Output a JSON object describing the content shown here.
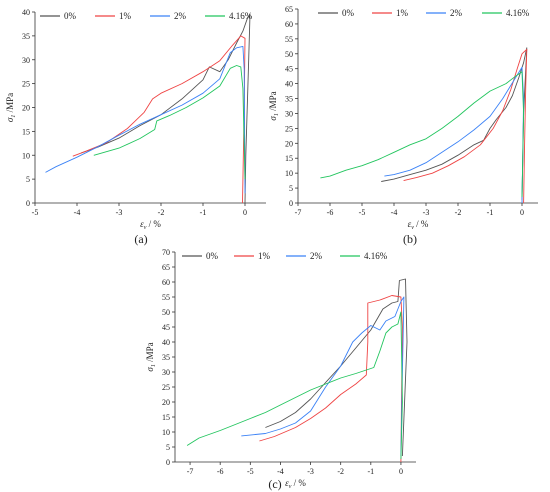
{
  "figure": {
    "panel_labels": [
      "(a)",
      "(b)",
      "(c)"
    ],
    "legend_labels": [
      "0%",
      "1%",
      "2%",
      "4.16%"
    ],
    "colors": {
      "0%": "#555555",
      "1%": "#ef4444",
      "2%": "#3b82f6",
      "4.16%": "#22c55e"
    }
  },
  "chart_data": [
    {
      "panel": "(a)",
      "type": "line",
      "xlabel_main": "ε",
      "xlabel_sub": "v",
      "xlabel_unit": " / %",
      "ylabel_main": "σ",
      "ylabel_sub": "1",
      "ylabel_unit": " /MPa",
      "xlim": [
        -5,
        0.5
      ],
      "ylim": [
        0,
        40
      ],
      "xticks": [
        -5,
        -4,
        -3,
        -2,
        -1,
        0
      ],
      "yticks": [
        0,
        5,
        10,
        15,
        20,
        25,
        30,
        35,
        40
      ],
      "legend": "top",
      "series": [
        {
          "name": "0%",
          "points": [
            [
              -3.9,
              10.5
            ],
            [
              -3.5,
              11.7
            ],
            [
              -3.0,
              13.6
            ],
            [
              -2.5,
              16.2
            ],
            [
              -2.0,
              18.5
            ],
            [
              -1.5,
              21.8
            ],
            [
              -1.0,
              25.8
            ],
            [
              -0.85,
              28.5
            ],
            [
              -0.6,
              27.5
            ],
            [
              -0.4,
              30
            ],
            [
              -0.2,
              33.5
            ],
            [
              -0.05,
              36
            ],
            [
              0.05,
              38.5
            ],
            [
              0.12,
              39.5
            ],
            [
              0.08,
              28
            ],
            [
              0.02,
              10
            ],
            [
              0.0,
              0
            ]
          ]
        },
        {
          "name": "1%",
          "points": [
            [
              -4.1,
              9.8
            ],
            [
              -3.8,
              10.8
            ],
            [
              -3.3,
              12.6
            ],
            [
              -2.8,
              15.6
            ],
            [
              -2.4,
              19
            ],
            [
              -2.2,
              21.8
            ],
            [
              -2.0,
              23
            ],
            [
              -1.5,
              25
            ],
            [
              -1.0,
              27.5
            ],
            [
              -0.6,
              29.8
            ],
            [
              -0.3,
              33
            ],
            [
              -0.1,
              35
            ],
            [
              0.0,
              34.5
            ],
            [
              -0.02,
              20
            ],
            [
              -0.06,
              0
            ]
          ]
        },
        {
          "name": "2%",
          "points": [
            [
              -4.75,
              6.4
            ],
            [
              -4.5,
              7.6
            ],
            [
              -4.0,
              9.6
            ],
            [
              -3.5,
              11.8
            ],
            [
              -3.0,
              14.2
            ],
            [
              -2.5,
              16.5
            ],
            [
              -2.0,
              18.5
            ],
            [
              -1.5,
              20.5
            ],
            [
              -1.0,
              23
            ],
            [
              -0.6,
              26
            ],
            [
              -0.35,
              31.5
            ],
            [
              -0.2,
              32.5
            ],
            [
              -0.05,
              32.8
            ],
            [
              -0.02,
              28
            ],
            [
              0.0,
              2
            ]
          ]
        },
        {
          "name": "4.16%",
          "points": [
            [
              -3.6,
              10
            ],
            [
              -3.0,
              11.5
            ],
            [
              -2.5,
              13.5
            ],
            [
              -2.15,
              15.4
            ],
            [
              -2.1,
              17.2
            ],
            [
              -1.8,
              18.3
            ],
            [
              -1.4,
              20
            ],
            [
              -1.0,
              22
            ],
            [
              -0.6,
              24.5
            ],
            [
              -0.35,
              28.2
            ],
            [
              -0.2,
              28.8
            ],
            [
              -0.1,
              28.5
            ],
            [
              -0.05,
              24
            ],
            [
              0.0,
              5
            ]
          ]
        }
      ]
    },
    {
      "panel": "(b)",
      "type": "line",
      "xlabel_main": "ε",
      "xlabel_sub": "v",
      "xlabel_unit": " / %",
      "ylabel_main": "σ",
      "ylabel_sub": "1",
      "ylabel_unit": " /MPa",
      "xlim": [
        -7,
        0.5
      ],
      "ylim": [
        0,
        65
      ],
      "xticks": [
        -7,
        -6,
        -5,
        -4,
        -3,
        -2,
        -1,
        0
      ],
      "yticks": [
        0,
        5,
        10,
        15,
        20,
        25,
        30,
        35,
        40,
        45,
        50,
        55,
        60,
        65
      ],
      "legend": "top",
      "series": [
        {
          "name": "0%",
          "points": [
            [
              -4.4,
              7.2
            ],
            [
              -4.0,
              8
            ],
            [
              -3.5,
              9.5
            ],
            [
              -3.0,
              11
            ],
            [
              -2.5,
              13
            ],
            [
              -2.0,
              16
            ],
            [
              -1.5,
              19.5
            ],
            [
              -1.2,
              21
            ],
            [
              -1.0,
              25
            ],
            [
              -0.8,
              28
            ],
            [
              -0.5,
              32
            ],
            [
              -0.3,
              36
            ],
            [
              -0.1,
              42
            ],
            [
              0.05,
              47
            ],
            [
              0.15,
              52
            ],
            [
              0.05,
              30
            ],
            [
              0.0,
              1
            ]
          ]
        },
        {
          "name": "1%",
          "points": [
            [
              -3.7,
              7.5
            ],
            [
              -3.3,
              8.5
            ],
            [
              -2.8,
              10
            ],
            [
              -2.3,
              12.5
            ],
            [
              -1.8,
              15.5
            ],
            [
              -1.3,
              19.5
            ],
            [
              -0.9,
              25
            ],
            [
              -0.6,
              31
            ],
            [
              -0.35,
              38
            ],
            [
              -0.15,
              45
            ],
            [
              0.0,
              50
            ],
            [
              0.15,
              51.5
            ],
            [
              0.12,
              40
            ],
            [
              0.08,
              20
            ],
            [
              0.05,
              0
            ]
          ]
        },
        {
          "name": "2%",
          "points": [
            [
              -4.3,
              9
            ],
            [
              -4.0,
              9.5
            ],
            [
              -3.5,
              11
            ],
            [
              -3.0,
              13.5
            ],
            [
              -2.5,
              17
            ],
            [
              -2.0,
              20.5
            ],
            [
              -1.5,
              24.5
            ],
            [
              -1.0,
              29
            ],
            [
              -0.6,
              35
            ],
            [
              -0.2,
              42
            ],
            [
              0.0,
              45.5
            ],
            [
              0.05,
              35
            ],
            [
              0.0,
              0
            ]
          ]
        },
        {
          "name": "4.16%",
          "points": [
            [
              -6.3,
              8.4
            ],
            [
              -6.0,
              9
            ],
            [
              -5.5,
              11
            ],
            [
              -5.0,
              12.5
            ],
            [
              -4.5,
              14.5
            ],
            [
              -4.0,
              17
            ],
            [
              -3.5,
              19.5
            ],
            [
              -3.0,
              21.5
            ],
            [
              -2.5,
              25
            ],
            [
              -2.0,
              29
            ],
            [
              -1.5,
              33.5
            ],
            [
              -1.0,
              37.5
            ],
            [
              -0.5,
              40
            ],
            [
              -0.2,
              42.5
            ],
            [
              0.0,
              44
            ],
            [
              0.05,
              30
            ],
            [
              0.0,
              2
            ]
          ]
        }
      ]
    },
    {
      "panel": "(c)",
      "type": "line",
      "xlabel_main": "ε",
      "xlabel_sub": "v",
      "xlabel_unit": " / %",
      "ylabel_main": "σ",
      "ylabel_sub": "1",
      "ylabel_unit": " /MPa",
      "xlim": [
        -7.5,
        0.5
      ],
      "ylim": [
        0,
        70
      ],
      "xticks": [
        -7,
        -6,
        -5,
        -4,
        -3,
        -2,
        -1,
        0
      ],
      "yticks": [
        0,
        5,
        10,
        15,
        20,
        25,
        30,
        35,
        40,
        45,
        50,
        55,
        60,
        65,
        70
      ],
      "legend": "top",
      "series": [
        {
          "name": "0%",
          "points": [
            [
              -4.5,
              11.5
            ],
            [
              -4.0,
              13.5
            ],
            [
              -3.5,
              16.5
            ],
            [
              -3.0,
              21
            ],
            [
              -2.5,
              26.5
            ],
            [
              -2.0,
              32
            ],
            [
              -1.5,
              38
            ],
            [
              -1.0,
              44
            ],
            [
              -0.6,
              51
            ],
            [
              -0.3,
              53
            ],
            [
              -0.1,
              53.5
            ],
            [
              -0.05,
              60.5
            ],
            [
              0.15,
              61
            ],
            [
              0.2,
              40
            ],
            [
              0.05,
              2
            ]
          ]
        },
        {
          "name": "1%",
          "points": [
            [
              -4.7,
              7
            ],
            [
              -4.2,
              8.5
            ],
            [
              -3.5,
              11.5
            ],
            [
              -3.0,
              14.5
            ],
            [
              -2.5,
              18
            ],
            [
              -2.0,
              22.5
            ],
            [
              -1.5,
              26
            ],
            [
              -1.15,
              29
            ],
            [
              -1.1,
              40
            ],
            [
              -1.1,
              53
            ],
            [
              -0.7,
              54
            ],
            [
              -0.3,
              55.5
            ],
            [
              0.0,
              55
            ],
            [
              0.05,
              45
            ],
            [
              0.02,
              20
            ],
            [
              0.0,
              0
            ]
          ]
        },
        {
          "name": "2%",
          "points": [
            [
              -5.3,
              8.7
            ],
            [
              -4.5,
              9.5
            ],
            [
              -4.0,
              11
            ],
            [
              -3.5,
              13
            ],
            [
              -3.0,
              17
            ],
            [
              -2.5,
              25
            ],
            [
              -2.0,
              32
            ],
            [
              -1.6,
              40
            ],
            [
              -1.3,
              43
            ],
            [
              -1.0,
              45.5
            ],
            [
              -0.7,
              44
            ],
            [
              -0.5,
              47
            ],
            [
              -0.2,
              48.5
            ],
            [
              0.0,
              53.5
            ],
            [
              0.1,
              55
            ],
            [
              0.05,
              30
            ],
            [
              0.0,
              2
            ]
          ]
        },
        {
          "name": "4.16%",
          "points": [
            [
              -7.1,
              5.5
            ],
            [
              -6.7,
              8
            ],
            [
              -6.0,
              10.5
            ],
            [
              -5.5,
              12.5
            ],
            [
              -5.0,
              14.5
            ],
            [
              -4.5,
              16.5
            ],
            [
              -4.0,
              19
            ],
            [
              -3.5,
              21.5
            ],
            [
              -3.0,
              24
            ],
            [
              -2.5,
              26
            ],
            [
              -2.0,
              28
            ],
            [
              -1.5,
              29.5
            ],
            [
              -1.2,
              30.5
            ],
            [
              -0.9,
              31.5
            ],
            [
              -0.7,
              37
            ],
            [
              -0.5,
              43
            ],
            [
              -0.3,
              45
            ],
            [
              -0.1,
              46
            ],
            [
              0.0,
              50
            ],
            [
              0.05,
              20
            ],
            [
              0.0,
              1
            ]
          ]
        }
      ]
    }
  ]
}
